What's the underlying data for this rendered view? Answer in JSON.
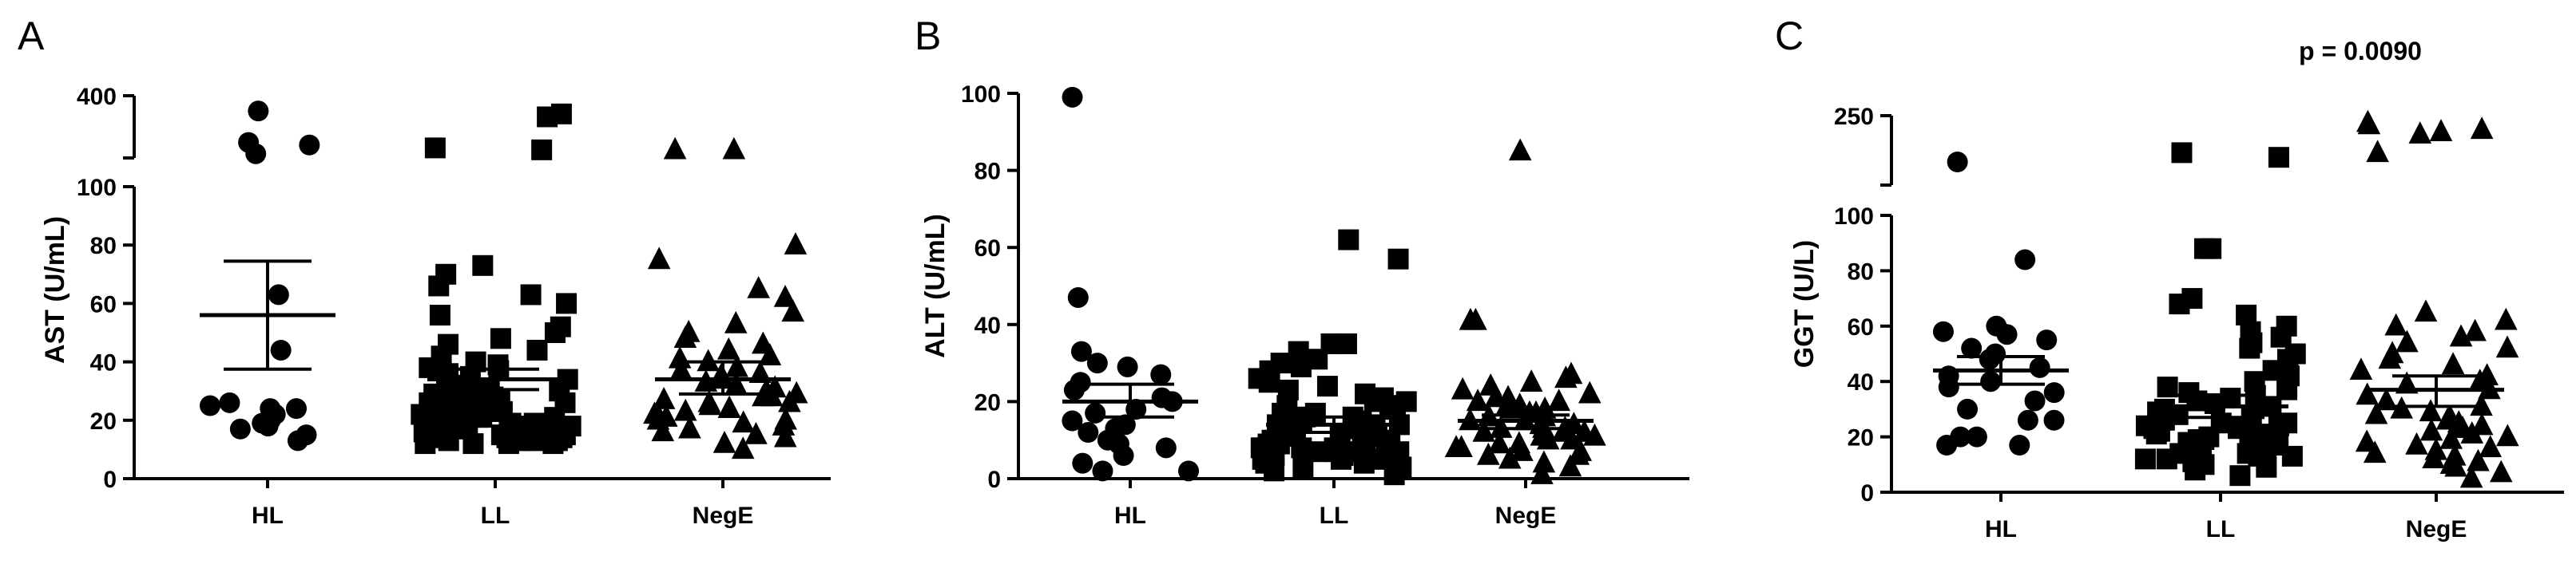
{
  "chart_data": [
    {
      "type": "scatter",
      "panel_label": "A",
      "ylabel": "AST (U/mL)",
      "categories": [
        "HL",
        "LL",
        "NegE"
      ],
      "yaxis": {
        "lower": {
          "range": [
            0,
            100
          ],
          "ticks": [
            0,
            20,
            40,
            60,
            80,
            100
          ]
        },
        "upper": {
          "range": [
            100,
            400
          ],
          "ticks": [
            400
          ]
        }
      },
      "series": [
        {
          "category": "HL",
          "marker": "circle",
          "mean": 56,
          "sem_low": 37.5,
          "sem_high": 74.5,
          "values": [
            26,
            24,
            22,
            19,
            17,
            15,
            13,
            18,
            20,
            24,
            25,
            63,
            44,
            130,
            175,
            188,
            350
          ]
        },
        {
          "category": "LL",
          "marker": "square",
          "mean": 34,
          "sem_low": 30.5,
          "sem_high": 37.5,
          "values": [
            12,
            12,
            12,
            12,
            13,
            13,
            13,
            13,
            14,
            14,
            14,
            14,
            15,
            15,
            15,
            15,
            16,
            16,
            16,
            17,
            17,
            17,
            18,
            18,
            18,
            19,
            19,
            19,
            20,
            20,
            20,
            21,
            21,
            21,
            22,
            22,
            22,
            23,
            23,
            24,
            24,
            25,
            25,
            26,
            26,
            27,
            27,
            28,
            28,
            29,
            30,
            30,
            31,
            32,
            33,
            34,
            35,
            36,
            37,
            38,
            39,
            40,
            42,
            44,
            46,
            48,
            50,
            52,
            56,
            60,
            63,
            66,
            70,
            73,
            150,
            160,
            320,
            335
          ]
        },
        {
          "category": "NegE",
          "marker": "triangle",
          "mean": 34,
          "sem_low": 29,
          "sem_high": 40,
          "values": [
            10,
            12,
            14,
            15,
            16,
            17,
            18,
            19,
            20,
            20,
            21,
            22,
            22,
            23,
            24,
            24,
            25,
            26,
            26,
            27,
            28,
            28,
            29,
            30,
            31,
            32,
            33,
            34,
            35,
            36,
            37,
            38,
            40,
            41,
            42,
            44,
            46,
            48,
            50,
            53,
            57,
            62,
            65,
            75,
            80,
            150,
            150
          ]
        }
      ]
    },
    {
      "type": "scatter",
      "panel_label": "B",
      "ylabel": "ALT (U/mL)",
      "categories": [
        "HL",
        "LL",
        "NegE"
      ],
      "ylim": [
        0,
        100
      ],
      "yticks": [
        0,
        20,
        40,
        60,
        80,
        100
      ],
      "series": [
        {
          "category": "HL",
          "marker": "circle",
          "mean": 20,
          "sem_low": 16,
          "sem_high": 24.5,
          "values": [
            2,
            2,
            4,
            6,
            8,
            9,
            10,
            12,
            13,
            14,
            15,
            17,
            18,
            20,
            21,
            23,
            25,
            27,
            29,
            30,
            33,
            47,
            99
          ]
        },
        {
          "category": "LL",
          "marker": "square",
          "mean": 14,
          "sem_low": 12,
          "sem_high": 16,
          "values": [
            1,
            2,
            3,
            3,
            4,
            4,
            5,
            5,
            5,
            6,
            6,
            6,
            7,
            7,
            7,
            7,
            8,
            8,
            8,
            8,
            9,
            9,
            9,
            9,
            10,
            10,
            10,
            10,
            11,
            11,
            11,
            11,
            12,
            12,
            12,
            12,
            13,
            13,
            13,
            14,
            14,
            14,
            15,
            15,
            15,
            16,
            16,
            17,
            17,
            18,
            18,
            19,
            19,
            20,
            20,
            21,
            22,
            23,
            24,
            25,
            26,
            28,
            29,
            30,
            31,
            33,
            35,
            35,
            57,
            62
          ]
        },
        {
          "category": "NegE",
          "marker": "triangle",
          "mean": 15,
          "sem_low": 13,
          "sem_high": 16.5,
          "values": [
            1,
            3,
            4,
            5,
            6,
            6,
            7,
            7,
            8,
            8,
            9,
            9,
            10,
            10,
            11,
            11,
            12,
            12,
            12,
            13,
            13,
            13,
            14,
            14,
            15,
            15,
            16,
            16,
            17,
            17,
            18,
            18,
            19,
            19,
            20,
            20,
            21,
            21,
            22,
            23,
            24,
            25,
            26,
            27,
            41,
            41,
            85
          ]
        }
      ]
    },
    {
      "type": "scatter",
      "panel_label": "C",
      "ylabel": "GGT (U/L)",
      "annotation": "p = 0.0090",
      "categories": [
        "HL",
        "LL",
        "NegE"
      ],
      "yaxis": {
        "lower": {
          "range": [
            0,
            100
          ],
          "ticks": [
            0,
            20,
            40,
            60,
            80,
            100
          ]
        },
        "upper": {
          "range": [
            100,
            250
          ],
          "ticks": [
            250
          ]
        }
      },
      "series": [
        {
          "category": "HL",
          "marker": "circle",
          "mean": 44,
          "sem_low": 39,
          "sem_high": 49,
          "values": [
            17,
            17,
            20,
            20,
            26,
            26,
            30,
            33,
            36,
            38,
            40,
            42,
            45,
            48,
            50,
            52,
            55,
            57,
            58,
            60,
            84,
            150
          ]
        },
        {
          "category": "LL",
          "marker": "square",
          "mean": 31,
          "sem_low": 27,
          "sem_high": 35,
          "values": [
            6,
            8,
            9,
            10,
            11,
            12,
            12,
            13,
            13,
            14,
            14,
            15,
            15,
            16,
            16,
            17,
            17,
            18,
            18,
            19,
            19,
            20,
            20,
            21,
            21,
            22,
            22,
            23,
            23,
            24,
            24,
            25,
            25,
            26,
            27,
            28,
            29,
            30,
            31,
            32,
            33,
            34,
            35,
            36,
            37,
            38,
            40,
            42,
            44,
            46,
            48,
            50,
            52,
            54,
            56,
            58,
            60,
            64,
            68,
            70,
            88,
            88,
            160,
            170
          ]
        },
        {
          "category": "NegE",
          "marker": "triangle",
          "mean": 37,
          "sem_low": 31,
          "sem_high": 42,
          "values": [
            5,
            7,
            9,
            10,
            11,
            12,
            13,
            14,
            15,
            16,
            17,
            18,
            19,
            20,
            21,
            22,
            23,
            24,
            25,
            26,
            27,
            28,
            29,
            30,
            31,
            33,
            35,
            37,
            39,
            40,
            42,
            44,
            46,
            48,
            50,
            52,
            54,
            56,
            58,
            60,
            62,
            65,
            170,
            210,
            215,
            220,
            230,
            235
          ]
        }
      ]
    }
  ]
}
